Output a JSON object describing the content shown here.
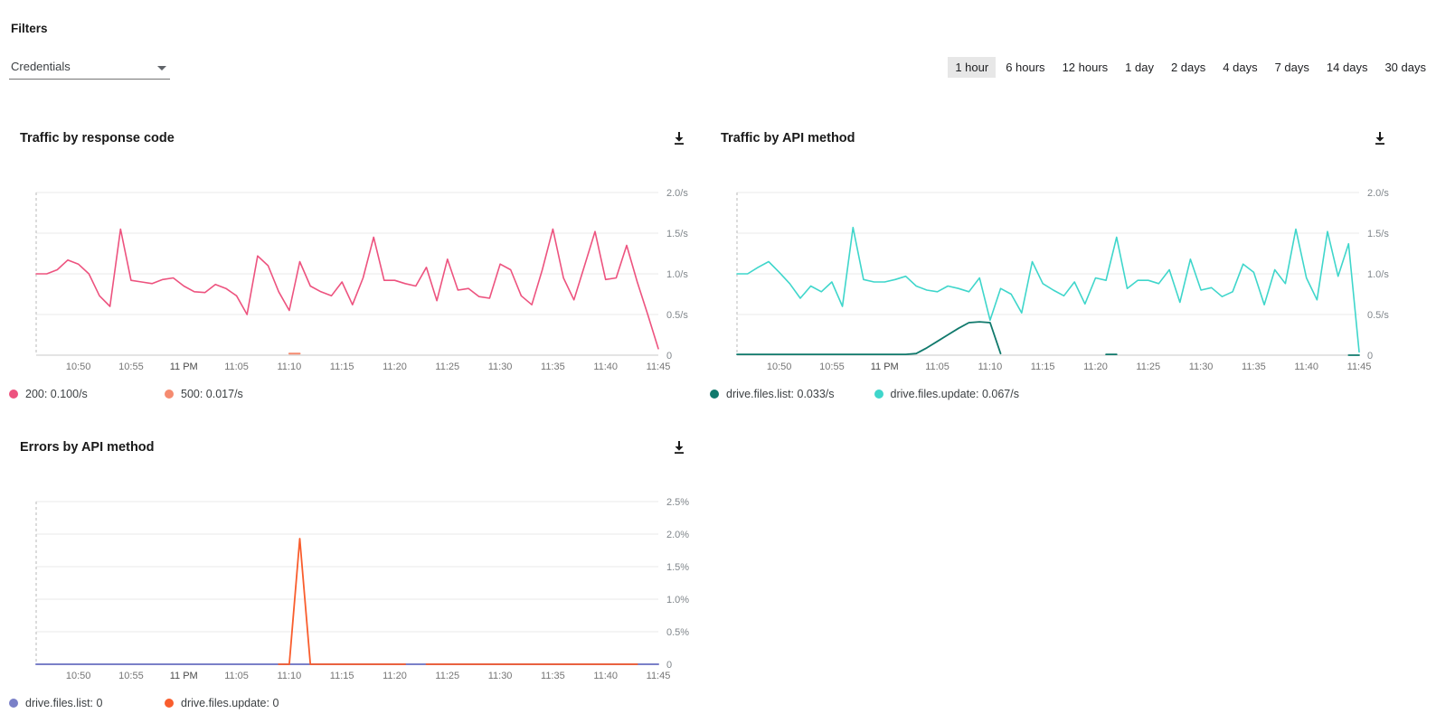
{
  "ui": {
    "filters_label": "Filters",
    "credentials_value": "Credentials"
  },
  "time_range": {
    "options": [
      "1 hour",
      "6 hours",
      "12 hours",
      "1 day",
      "2 days",
      "4 days",
      "7 days",
      "14 days",
      "30 days"
    ],
    "selected": "1 hour"
  },
  "colors": {
    "pink_200": "#ED537F",
    "salmon_500": "#F58B70",
    "teal_list": "#10796C",
    "cyan_update": "#3FD6CB",
    "indigo_list": "#7A80C8",
    "orange_update": "#F95D2D",
    "gridline": "#e9e9e9",
    "zero_axis": "#c9c9c9",
    "tick_text": "#757575"
  },
  "chart_data": [
    {
      "type": "line",
      "title": "Traffic by response code",
      "ylim": [
        0,
        2
      ],
      "grid": true,
      "legend_position": "bottom",
      "yticks": [
        {
          "v": 0,
          "label": "0"
        },
        {
          "v": 0.5,
          "label": "0.5/s"
        },
        {
          "v": 1.0,
          "label": "1.0/s"
        },
        {
          "v": 1.5,
          "label": "1.5/s"
        },
        {
          "v": 2.0,
          "label": "2.0/s"
        }
      ],
      "xticks": {
        "labels": [
          "10:50",
          "10:55",
          "11 PM",
          "11:05",
          "11:10",
          "11:15",
          "11:20",
          "11:25",
          "11:30",
          "11:35",
          "11:40",
          "11:45"
        ],
        "indices": [
          4,
          9,
          14,
          19,
          24,
          29,
          34,
          39,
          44,
          49,
          54,
          59
        ]
      },
      "series": [
        {
          "name": "200",
          "legend": "200: 0.100/s",
          "color": "#ED537F",
          "width": 1.6,
          "values": [
            1.0,
            1.0,
            1.05,
            1.17,
            1.12,
            1.0,
            0.73,
            0.6,
            1.55,
            0.92,
            0.9,
            0.88,
            0.93,
            0.95,
            0.85,
            0.78,
            0.77,
            0.87,
            0.82,
            0.73,
            0.5,
            1.22,
            1.1,
            0.78,
            0.55,
            1.15,
            0.85,
            0.78,
            0.73,
            0.9,
            0.62,
            0.95,
            1.45,
            0.92,
            0.92,
            0.88,
            0.85,
            1.08,
            0.67,
            1.18,
            0.8,
            0.82,
            0.72,
            0.7,
            1.12,
            1.05,
            0.73,
            0.62,
            1.05,
            1.55,
            0.95,
            0.68,
            1.1,
            1.52,
            0.93,
            0.95,
            1.35,
            0.9,
            0.5,
            0.08
          ]
        },
        {
          "name": "500",
          "legend": "500: 0.017/s",
          "color": "#F58B70",
          "width": 2,
          "values": [
            null,
            null,
            null,
            null,
            null,
            null,
            null,
            null,
            null,
            null,
            null,
            null,
            null,
            null,
            null,
            null,
            null,
            null,
            null,
            null,
            null,
            null,
            null,
            null,
            0.02,
            0.02,
            null,
            null,
            null,
            null,
            null,
            null,
            null,
            null,
            null,
            null,
            null,
            null,
            null,
            null,
            null,
            null,
            null,
            null,
            null,
            null,
            null,
            null,
            null,
            null,
            null,
            null,
            null,
            null,
            null,
            null,
            null,
            null,
            null,
            null
          ]
        }
      ]
    },
    {
      "type": "line",
      "title": "Traffic by API method",
      "ylim": [
        0,
        2
      ],
      "grid": true,
      "legend_position": "bottom",
      "yticks": [
        {
          "v": 0,
          "label": "0"
        },
        {
          "v": 0.5,
          "label": "0.5/s"
        },
        {
          "v": 1.0,
          "label": "1.0/s"
        },
        {
          "v": 1.5,
          "label": "1.5/s"
        },
        {
          "v": 2.0,
          "label": "2.0/s"
        }
      ],
      "xticks": {
        "labels": [
          "10:50",
          "10:55",
          "11 PM",
          "11:05",
          "11:10",
          "11:15",
          "11:20",
          "11:25",
          "11:30",
          "11:35",
          "11:40",
          "11:45"
        ],
        "indices": [
          4,
          9,
          14,
          19,
          24,
          29,
          34,
          39,
          44,
          49,
          54,
          59
        ]
      },
      "series": [
        {
          "name": "drive.files.list",
          "legend": "drive.files.list: 0.033/s",
          "color": "#10796C",
          "width": 1.8,
          "values": [
            0.01,
            0.01,
            0.01,
            0.01,
            0.01,
            0.01,
            0.01,
            0.01,
            0.01,
            0.01,
            0.01,
            0.01,
            0.01,
            0.01,
            0.01,
            0.01,
            0.01,
            0.02,
            0.09,
            0.17,
            0.25,
            0.33,
            0.4,
            0.41,
            0.4,
            0.02,
            null,
            null,
            null,
            null,
            null,
            null,
            null,
            null,
            null,
            0.01,
            0.01,
            null,
            null,
            null,
            null,
            null,
            null,
            null,
            null,
            null,
            null,
            null,
            null,
            null,
            null,
            null,
            null,
            null,
            null,
            null,
            null,
            null,
            0.0,
            0.0
          ]
        },
        {
          "name": "drive.files.update",
          "legend": "drive.files.update: 0.067/s",
          "color": "#3FD6CB",
          "width": 1.6,
          "values": [
            1.0,
            1.0,
            1.08,
            1.15,
            1.02,
            0.88,
            0.7,
            0.85,
            0.78,
            0.9,
            0.6,
            1.57,
            0.93,
            0.9,
            0.9,
            0.93,
            0.97,
            0.85,
            0.8,
            0.78,
            0.85,
            0.82,
            0.78,
            0.95,
            0.43,
            0.82,
            0.75,
            0.52,
            1.15,
            0.88,
            0.8,
            0.73,
            0.9,
            0.63,
            0.95,
            0.92,
            1.45,
            0.82,
            0.92,
            0.92,
            0.88,
            1.05,
            0.65,
            1.18,
            0.8,
            0.83,
            0.72,
            0.78,
            1.12,
            1.02,
            0.62,
            1.05,
            0.88,
            1.55,
            0.95,
            0.68,
            1.52,
            0.97,
            1.37,
            0.04
          ]
        }
      ]
    },
    {
      "type": "line",
      "title": "Errors by API method",
      "ylim": [
        0,
        2.5
      ],
      "grid": true,
      "legend_position": "bottom",
      "yticks": [
        {
          "v": 0,
          "label": "0"
        },
        {
          "v": 0.5,
          "label": "0.5%"
        },
        {
          "v": 1.0,
          "label": "1.0%"
        },
        {
          "v": 1.5,
          "label": "1.5%"
        },
        {
          "v": 2.0,
          "label": "2.0%"
        },
        {
          "v": 2.5,
          "label": "2.5%"
        }
      ],
      "xticks": {
        "labels": [
          "10:50",
          "10:55",
          "11 PM",
          "11:05",
          "11:10",
          "11:15",
          "11:20",
          "11:25",
          "11:30",
          "11:35",
          "11:40",
          "11:45"
        ],
        "indices": [
          4,
          9,
          14,
          19,
          24,
          29,
          34,
          39,
          44,
          49,
          54,
          59
        ]
      },
      "series": [
        {
          "name": "drive.files.list",
          "legend": "drive.files.list: 0",
          "color": "#7A80C8",
          "width": 2,
          "values": [
            0,
            0,
            0,
            0,
            0,
            0,
            0,
            0,
            0,
            0,
            0,
            0,
            0,
            0,
            0,
            0,
            0,
            0,
            0,
            0,
            0,
            0,
            0,
            0,
            0,
            0,
            0,
            0,
            0,
            0,
            0,
            0,
            0,
            0,
            0,
            0,
            0,
            0,
            0,
            0,
            0,
            0,
            0,
            0,
            0,
            0,
            0,
            0,
            0,
            0,
            0,
            0,
            0,
            0,
            0,
            0,
            0,
            0,
            0,
            0
          ]
        },
        {
          "name": "drive.files.update",
          "legend": "drive.files.update: 0",
          "color": "#F95D2D",
          "width": 1.8,
          "values": [
            null,
            null,
            null,
            null,
            null,
            null,
            null,
            null,
            null,
            null,
            null,
            null,
            null,
            null,
            null,
            null,
            null,
            null,
            null,
            null,
            null,
            null,
            null,
            0,
            0,
            1.93,
            0,
            0,
            0,
            0,
            0,
            0,
            0,
            0,
            0,
            0,
            null,
            0,
            0,
            0,
            0,
            0,
            0,
            0,
            0,
            0,
            0,
            0,
            0,
            0,
            0,
            0,
            0,
            0,
            0,
            0,
            0,
            0,
            null,
            null
          ]
        }
      ]
    }
  ]
}
